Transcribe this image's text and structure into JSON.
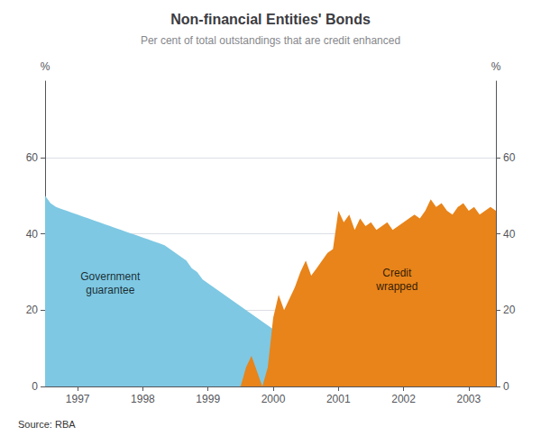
{
  "chart_data": {
    "type": "area",
    "title": "Non-financial Entities' Bonds",
    "subtitle": "Per cent of total outstandings that are credit enhanced",
    "source": "Source: RBA",
    "ylabel": "%",
    "y2label": "%",
    "xlim": [
      1996.5,
      2003.417
    ],
    "xticks": [
      1997,
      1998,
      1999,
      2000,
      2001,
      2002,
      2003
    ],
    "ylim": [
      0,
      80
    ],
    "yticks": [
      0,
      20,
      40,
      60
    ],
    "y2lim": [
      0,
      80
    ],
    "y2ticks": [
      0,
      20,
      40,
      60
    ],
    "grid": true,
    "x": [
      1996.5,
      1996.583,
      1996.667,
      1996.75,
      1996.833,
      1996.917,
      1997.0,
      1997.083,
      1997.167,
      1997.25,
      1997.333,
      1997.417,
      1997.5,
      1997.583,
      1997.667,
      1997.75,
      1997.833,
      1997.917,
      1998.0,
      1998.083,
      1998.167,
      1998.25,
      1998.333,
      1998.417,
      1998.5,
      1998.583,
      1998.667,
      1998.75,
      1998.833,
      1998.917,
      1999.0,
      1999.083,
      1999.167,
      1999.25,
      1999.333,
      1999.417,
      1999.5,
      1999.583,
      1999.667,
      1999.75,
      1999.833,
      1999.917,
      2000.0,
      2000.083,
      2000.167,
      2000.25,
      2000.333,
      2000.417,
      2000.5,
      2000.583,
      2000.667,
      2000.75,
      2000.833,
      2000.917,
      2001.0,
      2001.083,
      2001.167,
      2001.25,
      2001.333,
      2001.417,
      2001.5,
      2001.583,
      2001.667,
      2001.75,
      2001.833,
      2001.917,
      2002.0,
      2002.083,
      2002.167,
      2002.25,
      2002.333,
      2002.417,
      2002.5,
      2002.583,
      2002.667,
      2002.75,
      2002.833,
      2002.917,
      2003.0,
      2003.083,
      2003.167,
      2003.25,
      2003.333,
      2003.417
    ],
    "series": [
      {
        "color": "#7EC8E3",
        "values": [
          50,
          48,
          47,
          46.5,
          46,
          45.5,
          45,
          44.5,
          44,
          43.5,
          43,
          42.5,
          42,
          41.5,
          41,
          40.5,
          40,
          39.5,
          39,
          38.5,
          38,
          37.5,
          37,
          36,
          35,
          34,
          33,
          31,
          30,
          28,
          27,
          26,
          25,
          24,
          23,
          22,
          21,
          20,
          19,
          18,
          17,
          16,
          15,
          14.5,
          14,
          13.5,
          13,
          12.5,
          12,
          11.5,
          11,
          10.5,
          10,
          9.5,
          9,
          8.5,
          8.2,
          8,
          7.8,
          7.5,
          7.2,
          7,
          6.8,
          6.5,
          6.2,
          6,
          5.8,
          5.5,
          5.3,
          5,
          4.8,
          4.5,
          4.2,
          4,
          3.8,
          3.5,
          3.2,
          3,
          2.8,
          2.5,
          2.3,
          2,
          1.8,
          1.5
        ]
      },
      {
        "color": "#E8841A",
        "values": [
          0,
          0,
          0,
          0,
          0,
          0,
          0,
          0,
          0,
          0,
          0,
          0,
          0,
          0,
          0,
          0,
          0,
          0,
          0,
          0,
          0,
          0,
          0,
          0,
          0,
          0,
          0,
          0,
          0,
          0,
          0,
          0,
          0,
          0,
          0,
          0,
          0,
          5,
          8,
          4,
          0,
          5,
          18,
          24,
          20,
          23,
          26,
          30,
          33,
          29,
          31,
          33,
          35,
          36,
          46,
          43,
          45,
          41,
          44,
          42,
          43,
          41,
          42,
          43,
          41,
          42,
          43,
          44,
          45,
          44,
          46,
          49,
          47,
          48,
          46,
          45,
          47,
          48,
          46,
          47,
          45,
          46,
          47,
          46
        ]
      }
    ],
    "annotations": [
      {
        "x": 1997.5,
        "y": 27,
        "text": "Government\nguarantee"
      },
      {
        "x": 2001.9,
        "y": 28,
        "text": "Credit\nwrapped"
      }
    ]
  }
}
